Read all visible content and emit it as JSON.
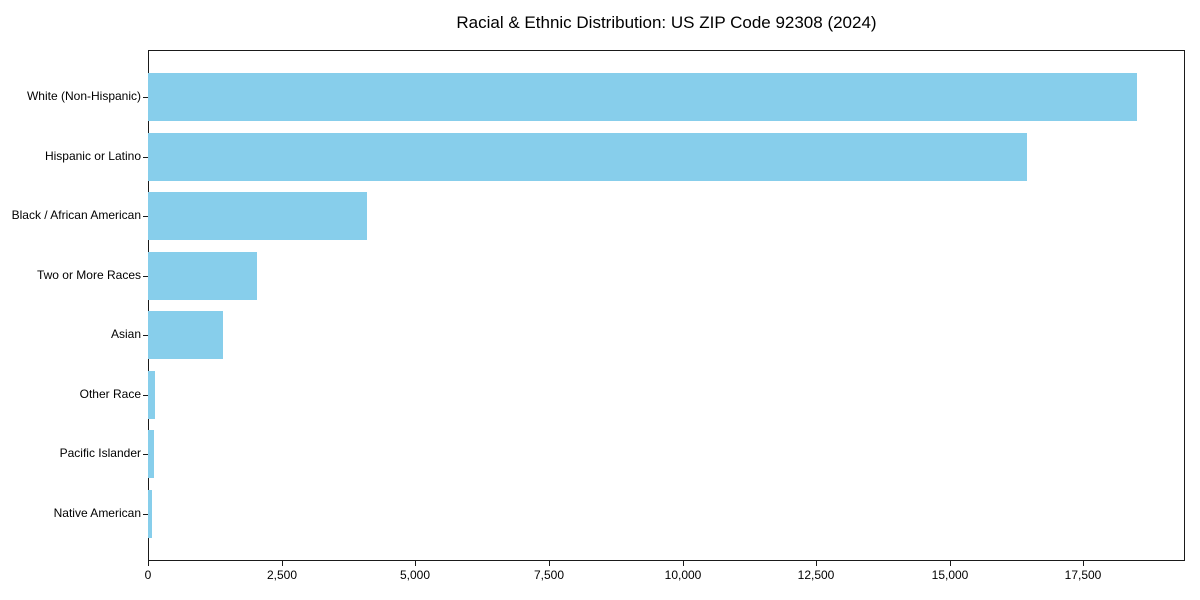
{
  "chart_data": {
    "type": "bar",
    "orientation": "horizontal",
    "title": "Racial & Ethnic Distribution: US ZIP Code 92308 (2024)",
    "categories": [
      "White (Non-Hispanic)",
      "Hispanic or Latino",
      "Black / African American",
      "Two or More Races",
      "Asian",
      "Other Race",
      "Pacific Islander",
      "Native American"
    ],
    "values": [
      18500,
      16450,
      4100,
      2040,
      1400,
      130,
      120,
      70
    ],
    "xlabel": "",
    "ylabel": "",
    "xlim": [
      0,
      19400
    ],
    "xticks": [
      0,
      2500,
      5000,
      7500,
      10000,
      12500,
      15000,
      17500
    ],
    "xtick_labels": [
      "0",
      "2,500",
      "5,000",
      "7,500",
      "10,000",
      "12,500",
      "15,000",
      "17,500"
    ],
    "bar_color": "#87CEEB",
    "axis_color": "#1a1a1a",
    "text_color": "#000000",
    "background_color": "#ffffff",
    "grid": false,
    "legend": "none"
  }
}
